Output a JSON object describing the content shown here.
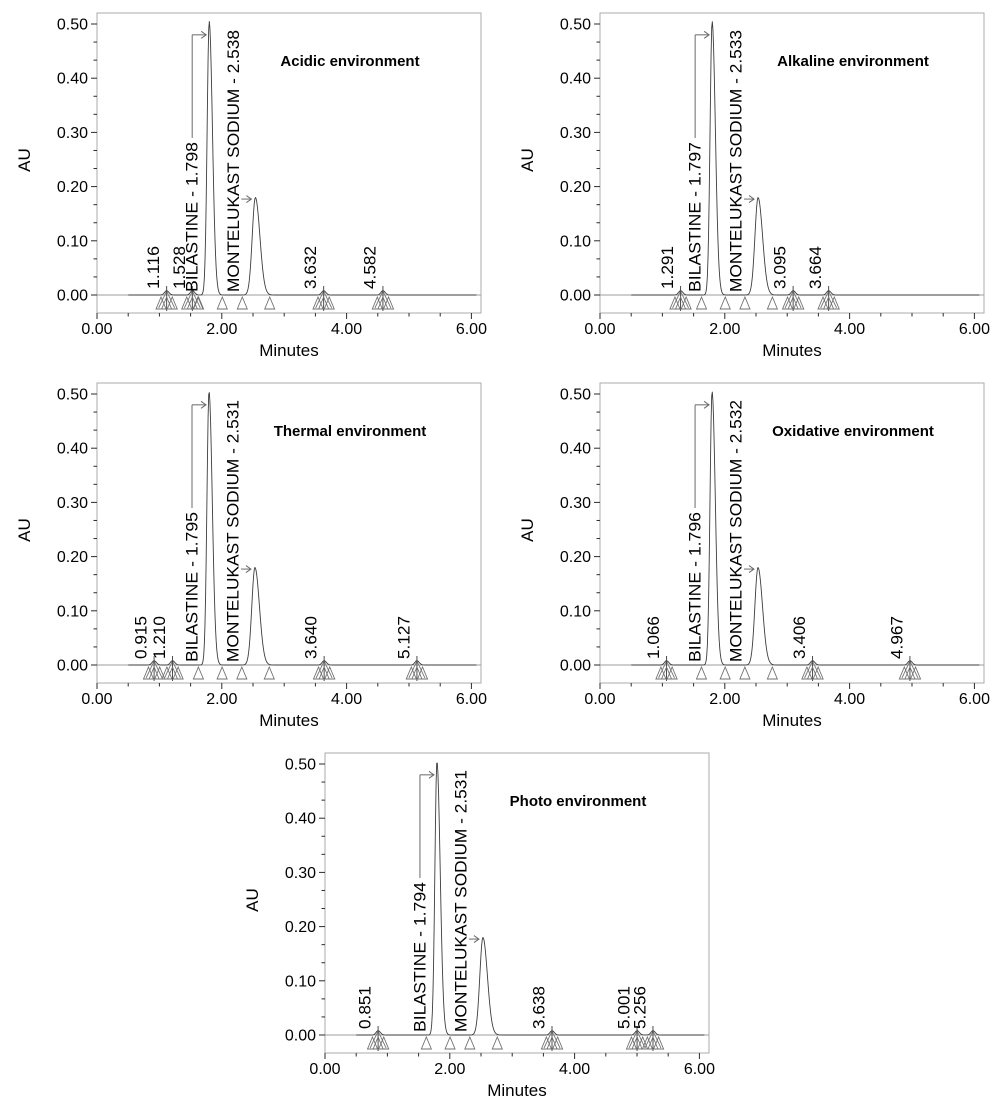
{
  "figure": {
    "description": "Forced degradation HPLC chromatograms of BILASTINE and MONTELUKAST SODIUM",
    "axis": {
      "x_label": "Minutes",
      "y_label": "AU",
      "x_tick_labels": [
        "0.00",
        "2.00",
        "4.00",
        "6.00"
      ],
      "y_tick_labels": [
        "0.00",
        "0.10",
        "0.20",
        "0.30",
        "0.40",
        "0.50"
      ]
    },
    "colors": {
      "trace": "#3d3d3d",
      "plot_border": "#ababab",
      "zero_line": "#9e9e9e",
      "tick": "#2a2a2a",
      "apex_marker": "#4c4c4c",
      "leader_arrow": "#6a6a6a",
      "triangle": "#707070",
      "tent": "#7a7a7a",
      "text": "#000000"
    }
  },
  "chart_data": [
    {
      "type": "line",
      "title": "Acidic environment",
      "xlabel": "Minutes",
      "ylabel": "AU",
      "xlim": [
        0,
        6.15
      ],
      "ylim": [
        -0.033,
        0.52
      ],
      "x_major_ticks": [
        0,
        2,
        4,
        6
      ],
      "x_minor_step": 0.5,
      "y_major_ticks": [
        0,
        0.1,
        0.2,
        0.3,
        0.4,
        0.5
      ],
      "y_minors_per_major": 2,
      "peaks": [
        {
          "label": "1.116",
          "rt": 1.116,
          "height": 0.008,
          "kind": "minor"
        },
        {
          "label": "1.528",
          "rt": 1.528,
          "height": 0.008,
          "kind": "minor"
        },
        {
          "label": "BILASTINE - 1.798",
          "name": "BILASTINE",
          "rt": 1.798,
          "height": 0.505,
          "kind": "major"
        },
        {
          "label": "MONTELUKAST SODIUM - 2.538",
          "name": "MONTELUKAST SODIUM",
          "rt": 2.538,
          "height": 0.18,
          "kind": "major2"
        },
        {
          "label": "3.632",
          "rt": 3.632,
          "height": 0.008,
          "kind": "minor"
        },
        {
          "label": "4.582",
          "rt": 4.582,
          "height": 0.008,
          "kind": "minor"
        }
      ]
    },
    {
      "type": "line",
      "title": "Alkaline environment",
      "xlabel": "Minutes",
      "ylabel": "AU",
      "xlim": [
        0,
        6.15
      ],
      "ylim": [
        -0.033,
        0.52
      ],
      "x_major_ticks": [
        0,
        2,
        4,
        6
      ],
      "x_minor_step": 0.5,
      "y_major_ticks": [
        0,
        0.1,
        0.2,
        0.3,
        0.4,
        0.5
      ],
      "y_minors_per_major": 2,
      "peaks": [
        {
          "label": "1.291",
          "rt": 1.291,
          "height": 0.008,
          "kind": "minor"
        },
        {
          "label": "BILASTINE - 1.797",
          "name": "BILASTINE",
          "rt": 1.797,
          "height": 0.505,
          "kind": "major"
        },
        {
          "label": "MONTELUKAST SODIUM - 2.533",
          "name": "MONTELUKAST SODIUM",
          "rt": 2.533,
          "height": 0.18,
          "kind": "major2"
        },
        {
          "label": "3.095",
          "rt": 3.095,
          "height": 0.008,
          "kind": "minor"
        },
        {
          "label": "3.664",
          "rt": 3.664,
          "height": 0.008,
          "kind": "minor"
        }
      ]
    },
    {
      "type": "line",
      "title": "Thermal environment",
      "xlabel": "Minutes",
      "ylabel": "AU",
      "xlim": [
        0,
        6.15
      ],
      "ylim": [
        -0.033,
        0.52
      ],
      "x_major_ticks": [
        0,
        2,
        4,
        6
      ],
      "x_minor_step": 0.5,
      "y_major_ticks": [
        0,
        0.1,
        0.2,
        0.3,
        0.4,
        0.5
      ],
      "y_minors_per_major": 2,
      "peaks": [
        {
          "label": "0.915",
          "rt": 0.915,
          "height": 0.008,
          "kind": "minor"
        },
        {
          "label": "1.210",
          "rt": 1.21,
          "height": 0.008,
          "kind": "minor"
        },
        {
          "label": "BILASTINE - 1.795",
          "name": "BILASTINE",
          "rt": 1.795,
          "height": 0.505,
          "kind": "major"
        },
        {
          "label": "MONTELUKAST SODIUM - 2.531",
          "name": "MONTELUKAST SODIUM",
          "rt": 2.531,
          "height": 0.18,
          "kind": "major2"
        },
        {
          "label": "3.640",
          "rt": 3.64,
          "height": 0.008,
          "kind": "minor"
        },
        {
          "label": "5.127",
          "rt": 5.127,
          "height": 0.008,
          "kind": "minor"
        }
      ]
    },
    {
      "type": "line",
      "title": "Oxidative environment",
      "xlabel": "Minutes",
      "ylabel": "AU",
      "xlim": [
        0,
        6.15
      ],
      "ylim": [
        -0.033,
        0.52
      ],
      "x_major_ticks": [
        0,
        2,
        4,
        6
      ],
      "x_minor_step": 0.5,
      "y_major_ticks": [
        0,
        0.1,
        0.2,
        0.3,
        0.4,
        0.5
      ],
      "y_minors_per_major": 2,
      "peaks": [
        {
          "label": "1.066",
          "rt": 1.066,
          "height": 0.008,
          "kind": "minor"
        },
        {
          "label": "BILASTINE - 1.796",
          "name": "BILASTINE",
          "rt": 1.796,
          "height": 0.505,
          "kind": "major"
        },
        {
          "label": "MONTELUKAST SODIUM - 2.532",
          "name": "MONTELUKAST SODIUM",
          "rt": 2.532,
          "height": 0.18,
          "kind": "major2"
        },
        {
          "label": "3.406",
          "rt": 3.406,
          "height": 0.008,
          "kind": "minor"
        },
        {
          "label": "4.967",
          "rt": 4.967,
          "height": 0.008,
          "kind": "minor"
        }
      ]
    },
    {
      "type": "line",
      "title": "Photo environment",
      "xlabel": "Minutes",
      "ylabel": "AU",
      "xlim": [
        0,
        6.15
      ],
      "ylim": [
        -0.033,
        0.52
      ],
      "x_major_ticks": [
        0,
        2,
        4,
        6
      ],
      "x_minor_step": 0.5,
      "y_major_ticks": [
        0,
        0.1,
        0.2,
        0.3,
        0.4,
        0.5
      ],
      "y_minors_per_major": 2,
      "peaks": [
        {
          "label": "0.851",
          "rt": 0.851,
          "height": 0.008,
          "kind": "minor"
        },
        {
          "label": "BILASTINE - 1.794",
          "name": "BILASTINE",
          "rt": 1.794,
          "height": 0.505,
          "kind": "major"
        },
        {
          "label": "MONTELUKAST SODIUM - 2.531",
          "name": "MONTELUKAST SODIUM",
          "rt": 2.531,
          "height": 0.18,
          "kind": "major2"
        },
        {
          "label": "3.638",
          "rt": 3.638,
          "height": 0.008,
          "kind": "minor"
        },
        {
          "label": "5.001",
          "rt": 5.001,
          "height": 0.008,
          "kind": "minor"
        },
        {
          "label": "5.256",
          "rt": 5.256,
          "height": 0.008,
          "kind": "minor"
        }
      ]
    }
  ]
}
